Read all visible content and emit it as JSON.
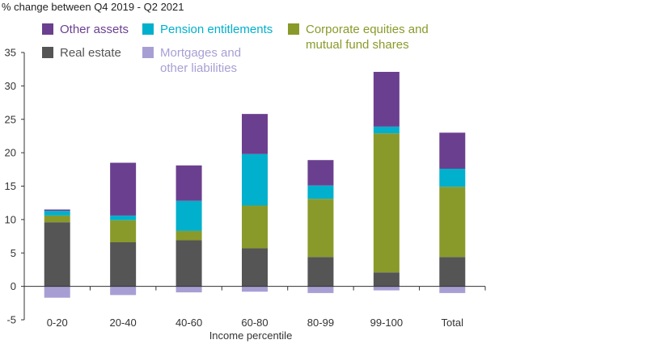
{
  "chart_data": {
    "type": "bar",
    "stacked": true,
    "title": "",
    "ylabel": "% change between Q4 2019 - Q2 2021",
    "xlabel": "Income percentile",
    "categories": [
      "0-20",
      "20-40",
      "40-60",
      "60-80",
      "80-99",
      "99-100",
      "Total"
    ],
    "ylim": [
      -5,
      35
    ],
    "yticks": [
      35,
      30,
      25,
      20,
      15,
      10,
      5,
      0,
      -5
    ],
    "grid": false,
    "legend_position": "top",
    "series": [
      {
        "name": "Real estate",
        "color": "#555555",
        "values": [
          9.6,
          6.6,
          6.9,
          5.7,
          4.4,
          2.1,
          4.4
        ]
      },
      {
        "name": "Corporate equities and\nmutual fund shares",
        "color": "#8a9a2a",
        "values": [
          1.0,
          3.3,
          1.4,
          6.4,
          8.7,
          20.8,
          10.5
        ]
      },
      {
        "name": "Pension entitlements",
        "color": "#00b0cc",
        "values": [
          0.7,
          0.7,
          4.5,
          7.7,
          2.0,
          1.0,
          2.7
        ]
      },
      {
        "name": "Other assets",
        "color": "#6b3f8f",
        "values": [
          0.2,
          7.9,
          5.3,
          6.0,
          3.8,
          8.2,
          5.4
        ]
      },
      {
        "name": "Mortgages and\nother liabilities",
        "color": "#a79fd4",
        "values": [
          -1.7,
          -1.3,
          -0.9,
          -0.8,
          -1.0,
          -0.6,
          -1.0
        ]
      }
    ]
  },
  "legend": [
    {
      "label": "Other assets",
      "color": "#6b3f8f",
      "text_color": "#6b3f8f"
    },
    {
      "label": "Pension entitlements",
      "color": "#00b0cc",
      "text_color": "#00b0cc"
    },
    {
      "label": "Corporate equities and\nmutual fund shares",
      "color": "#8a9a2a",
      "text_color": "#8a9a2a"
    },
    {
      "label": "Real estate",
      "color": "#555555",
      "text_color": "#555555"
    },
    {
      "label": "Mortgages and\nother liabilities",
      "color": "#a79fd4",
      "text_color": "#a79fd4"
    }
  ]
}
